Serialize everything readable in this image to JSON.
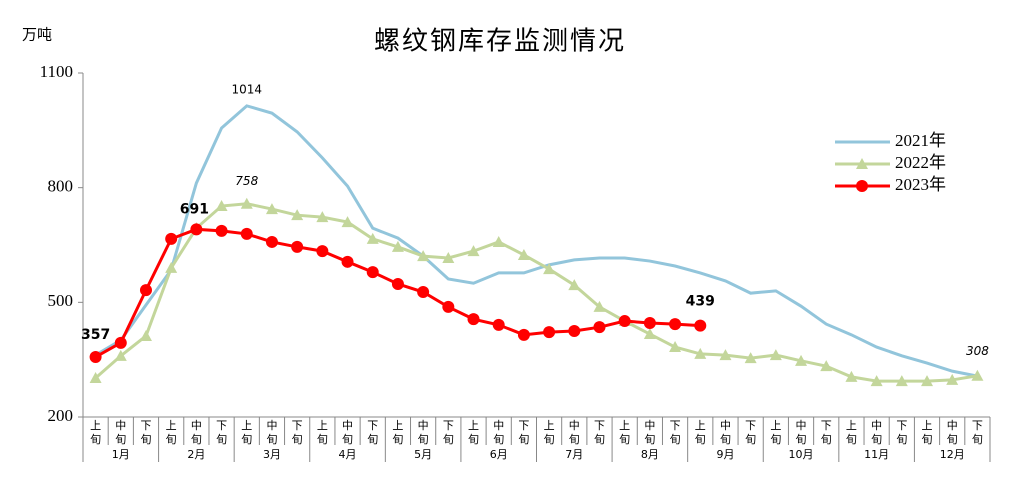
{
  "chart_data": {
    "type": "line",
    "title": "螺纹钢库存监测情况",
    "y_unit": "万吨",
    "categories": [
      "上旬",
      "中旬",
      "下旬",
      "上旬",
      "中旬",
      "下旬",
      "上旬",
      "中旬",
      "下旬",
      "上旬",
      "中旬",
      "下旬",
      "上旬",
      "中旬",
      "下旬",
      "上旬",
      "中旬",
      "下旬",
      "上旬",
      "中旬",
      "下旬",
      "上旬",
      "中旬",
      "下旬",
      "上旬",
      "中旬",
      "下旬",
      "上旬",
      "中旬",
      "下旬",
      "上旬",
      "中旬",
      "下旬",
      "上旬",
      "中旬",
      "下旬"
    ],
    "months": [
      "1月",
      "2月",
      "3月",
      "4月",
      "5月",
      "6月",
      "7月",
      "8月",
      "9月",
      "10月",
      "11月",
      "12月"
    ],
    "series": [
      {
        "name": "2021年",
        "color": "#92c5db",
        "marker": "none",
        "values": [
          362,
          401,
          493,
          585,
          812,
          956,
          1014,
          995,
          946,
          878,
          804,
          694,
          668,
          621,
          561,
          550,
          577,
          577,
          598,
          611,
          616,
          616,
          608,
          595,
          577,
          556,
          524,
          530,
          490,
          443,
          415,
          383,
          360,
          341,
          320,
          307
        ]
      },
      {
        "name": "2022年",
        "color": "#c3d69b",
        "marker": "triangle",
        "values": [
          302,
          360,
          412,
          590,
          694,
          752,
          758,
          744,
          728,
          723,
          710,
          666,
          645,
          621,
          616,
          634,
          658,
          624,
          587,
          545,
          488,
          451,
          417,
          383,
          365,
          362,
          354,
          362,
          347,
          333,
          305,
          294,
          294,
          294,
          297,
          308
        ]
      },
      {
        "name": "2023年",
        "color": "#ff0000",
        "marker": "circle",
        "values": [
          357,
          394,
          532,
          666,
          691,
          687,
          679,
          658,
          645,
          634,
          606,
          579,
          548,
          527,
          488,
          456,
          441,
          415,
          422,
          425,
          435,
          451,
          446,
          443,
          439,
          null,
          null,
          null,
          null,
          null,
          null,
          null,
          null,
          null,
          null,
          null
        ]
      }
    ],
    "ylim": [
      200,
      1100
    ],
    "yticks": [
      200,
      500,
      800,
      1100
    ],
    "legend": "upper right"
  }
}
